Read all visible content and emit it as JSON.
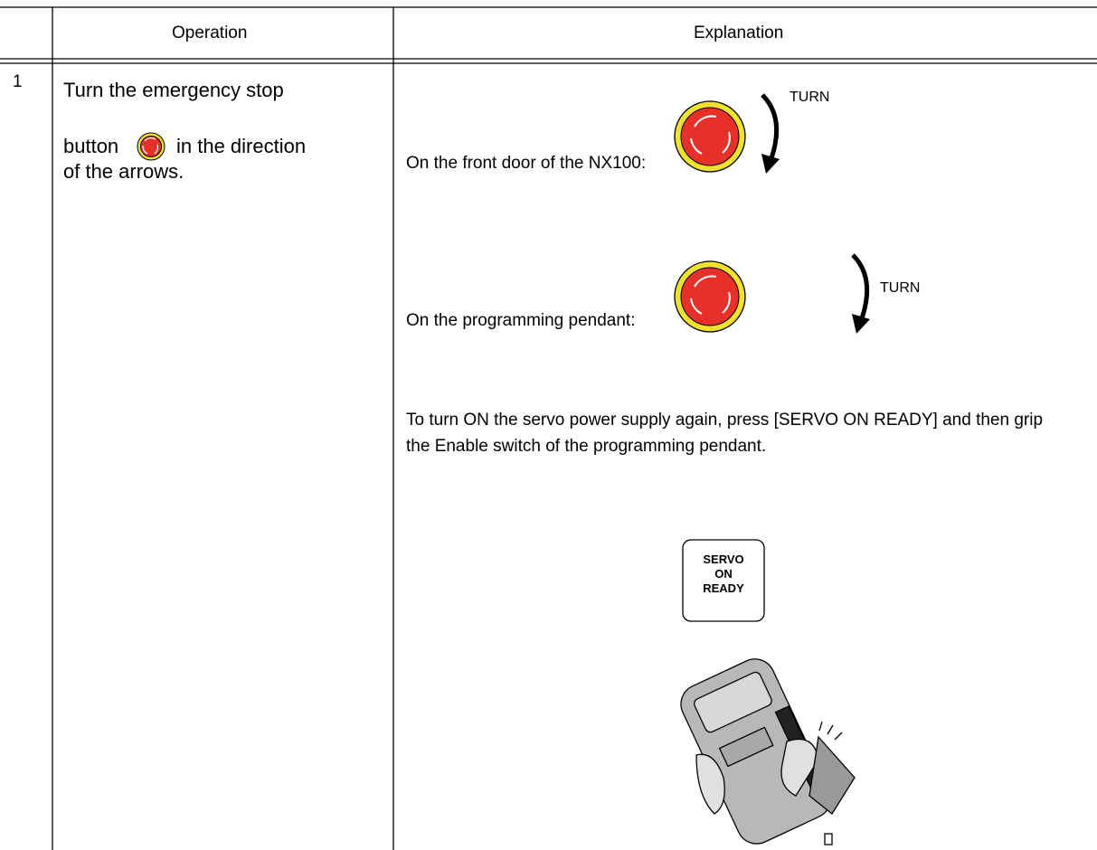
{
  "table": {
    "header": {
      "operation": "Operation",
      "explanation": "Explanation"
    },
    "rows": [
      {
        "step": "1",
        "operation": {
          "line1": "Turn the emergency stop",
          "before_icon": "button",
          "after_icon": "in the direction",
          "line3": "of the arrows."
        },
        "explanation": {
          "front_door": "On the front door of the NX100:",
          "front_door_turn": "TURN",
          "pendant": "On the programming pendant:",
          "pendant_turn": "TURN",
          "servo_note": "To turn ON the servo power supply again, press [SERVO ON READY] and then grip the Enable switch of the programming pendant.",
          "servo_button": [
            "SERVO",
            "ON",
            "READY"
          ]
        }
      }
    ]
  }
}
